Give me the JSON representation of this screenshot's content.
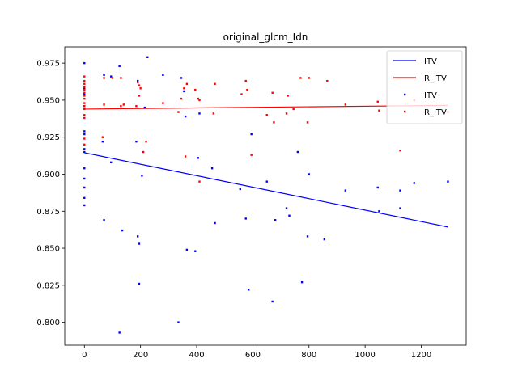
{
  "chart_data": {
    "type": "scatter",
    "title": "original_glcm_Idn",
    "xlabel": "",
    "ylabel": "",
    "xlim": [
      -70,
      1360
    ],
    "ylim": [
      0.7845,
      0.986
    ],
    "x_ticks": [
      0,
      200,
      400,
      600,
      800,
      1000,
      1200
    ],
    "y_ticks": [
      0.8,
      0.825,
      0.85,
      0.875,
      0.9,
      0.925,
      0.95,
      0.975
    ],
    "y_tick_labels": [
      "0.800",
      "0.825",
      "0.850",
      "0.875",
      "0.900",
      "0.925",
      "0.950",
      "0.975"
    ],
    "grid": false,
    "legend_position": "top-right",
    "legend": [
      {
        "label": "ITV",
        "kind": "line",
        "color": "#0000ff"
      },
      {
        "label": "R_ITV",
        "kind": "line",
        "color": "#ff0000"
      },
      {
        "label": "ITV",
        "kind": "marker",
        "color": "#0000ff"
      },
      {
        "label": "R_ITV",
        "kind": "marker",
        "color": "#ff0000"
      }
    ],
    "series": [
      {
        "name": "ITV",
        "kind": "scatter",
        "color": "#0000ff",
        "points": [
          [
            0,
            0.975
          ],
          [
            0,
            0.958
          ],
          [
            0,
            0.954
          ],
          [
            0,
            0.946
          ],
          [
            0,
            0.929
          ],
          [
            0,
            0.927
          ],
          [
            0,
            0.917
          ],
          [
            0,
            0.915
          ],
          [
            0,
            0.904
          ],
          [
            0,
            0.897
          ],
          [
            0,
            0.891
          ],
          [
            0,
            0.884
          ],
          [
            0,
            0.879
          ],
          [
            65,
            0.922
          ],
          [
            70,
            0.967
          ],
          [
            70,
            0.869
          ],
          [
            95,
            0.966
          ],
          [
            95,
            0.908
          ],
          [
            125,
            0.973
          ],
          [
            125,
            0.793
          ],
          [
            135,
            0.862
          ],
          [
            185,
            0.922
          ],
          [
            190,
            0.963
          ],
          [
            190,
            0.858
          ],
          [
            195,
            0.853
          ],
          [
            195,
            0.826
          ],
          [
            205,
            0.899
          ],
          [
            215,
            0.945
          ],
          [
            225,
            0.979
          ],
          [
            280,
            0.967
          ],
          [
            335,
            0.8
          ],
          [
            345,
            0.965
          ],
          [
            355,
            0.956
          ],
          [
            360,
            0.939
          ],
          [
            365,
            0.849
          ],
          [
            395,
            0.848
          ],
          [
            405,
            0.911
          ],
          [
            410,
            0.941
          ],
          [
            455,
            0.904
          ],
          [
            465,
            0.867
          ],
          [
            555,
            0.89
          ],
          [
            575,
            0.87
          ],
          [
            585,
            0.822
          ],
          [
            595,
            0.927
          ],
          [
            650,
            0.895
          ],
          [
            670,
            0.814
          ],
          [
            680,
            0.869
          ],
          [
            720,
            0.877
          ],
          [
            730,
            0.872
          ],
          [
            760,
            0.915
          ],
          [
            775,
            0.827
          ],
          [
            795,
            0.858
          ],
          [
            800,
            0.9
          ],
          [
            855,
            0.856
          ],
          [
            930,
            0.889
          ],
          [
            1045,
            0.891
          ],
          [
            1050,
            0.875
          ],
          [
            1125,
            0.889
          ],
          [
            1125,
            0.877
          ],
          [
            1175,
            0.894
          ],
          [
            1295,
            0.895
          ]
        ]
      },
      {
        "name": "R_ITV",
        "kind": "scatter",
        "color": "#ff0000",
        "points": [
          [
            0,
            0.966
          ],
          [
            0,
            0.963
          ],
          [
            0,
            0.961
          ],
          [
            0,
            0.959
          ],
          [
            0,
            0.957
          ],
          [
            0,
            0.955
          ],
          [
            0,
            0.953
          ],
          [
            0,
            0.951
          ],
          [
            0,
            0.948
          ],
          [
            0,
            0.946
          ],
          [
            0,
            0.944
          ],
          [
            0,
            0.94
          ],
          [
            0,
            0.938
          ],
          [
            0,
            0.924
          ],
          [
            0,
            0.92
          ],
          [
            65,
            0.925
          ],
          [
            70,
            0.965
          ],
          [
            70,
            0.947
          ],
          [
            100,
            0.965
          ],
          [
            130,
            0.965
          ],
          [
            130,
            0.946
          ],
          [
            140,
            0.947
          ],
          [
            185,
            0.946
          ],
          [
            190,
            0.962
          ],
          [
            195,
            0.96
          ],
          [
            195,
            0.953
          ],
          [
            200,
            0.958
          ],
          [
            210,
            0.915
          ],
          [
            220,
            0.922
          ],
          [
            280,
            0.948
          ],
          [
            335,
            0.942
          ],
          [
            345,
            0.951
          ],
          [
            355,
            0.958
          ],
          [
            360,
            0.912
          ],
          [
            365,
            0.961
          ],
          [
            395,
            0.957
          ],
          [
            405,
            0.951
          ],
          [
            410,
            0.95
          ],
          [
            410,
            0.895
          ],
          [
            460,
            0.941
          ],
          [
            465,
            0.961
          ],
          [
            560,
            0.954
          ],
          [
            575,
            0.963
          ],
          [
            580,
            0.957
          ],
          [
            595,
            0.913
          ],
          [
            650,
            0.94
          ],
          [
            670,
            0.955
          ],
          [
            675,
            0.935
          ],
          [
            720,
            0.941
          ],
          [
            725,
            0.953
          ],
          [
            745,
            0.944
          ],
          [
            770,
            0.965
          ],
          [
            795,
            0.935
          ],
          [
            800,
            0.965
          ],
          [
            865,
            0.963
          ],
          [
            930,
            0.947
          ],
          [
            1045,
            0.949
          ],
          [
            1050,
            0.943
          ],
          [
            1125,
            0.916
          ],
          [
            1175,
            0.95
          ],
          [
            1295,
            0.942
          ]
        ]
      }
    ],
    "trend_lines": [
      {
        "name": "ITV",
        "color": "#0000ff",
        "x": [
          0,
          1295
        ],
        "y": [
          0.9145,
          0.8643
        ]
      },
      {
        "name": "R_ITV",
        "color": "#ff0000",
        "x": [
          0,
          1295
        ],
        "y": [
          0.944,
          0.9465
        ]
      }
    ]
  }
}
